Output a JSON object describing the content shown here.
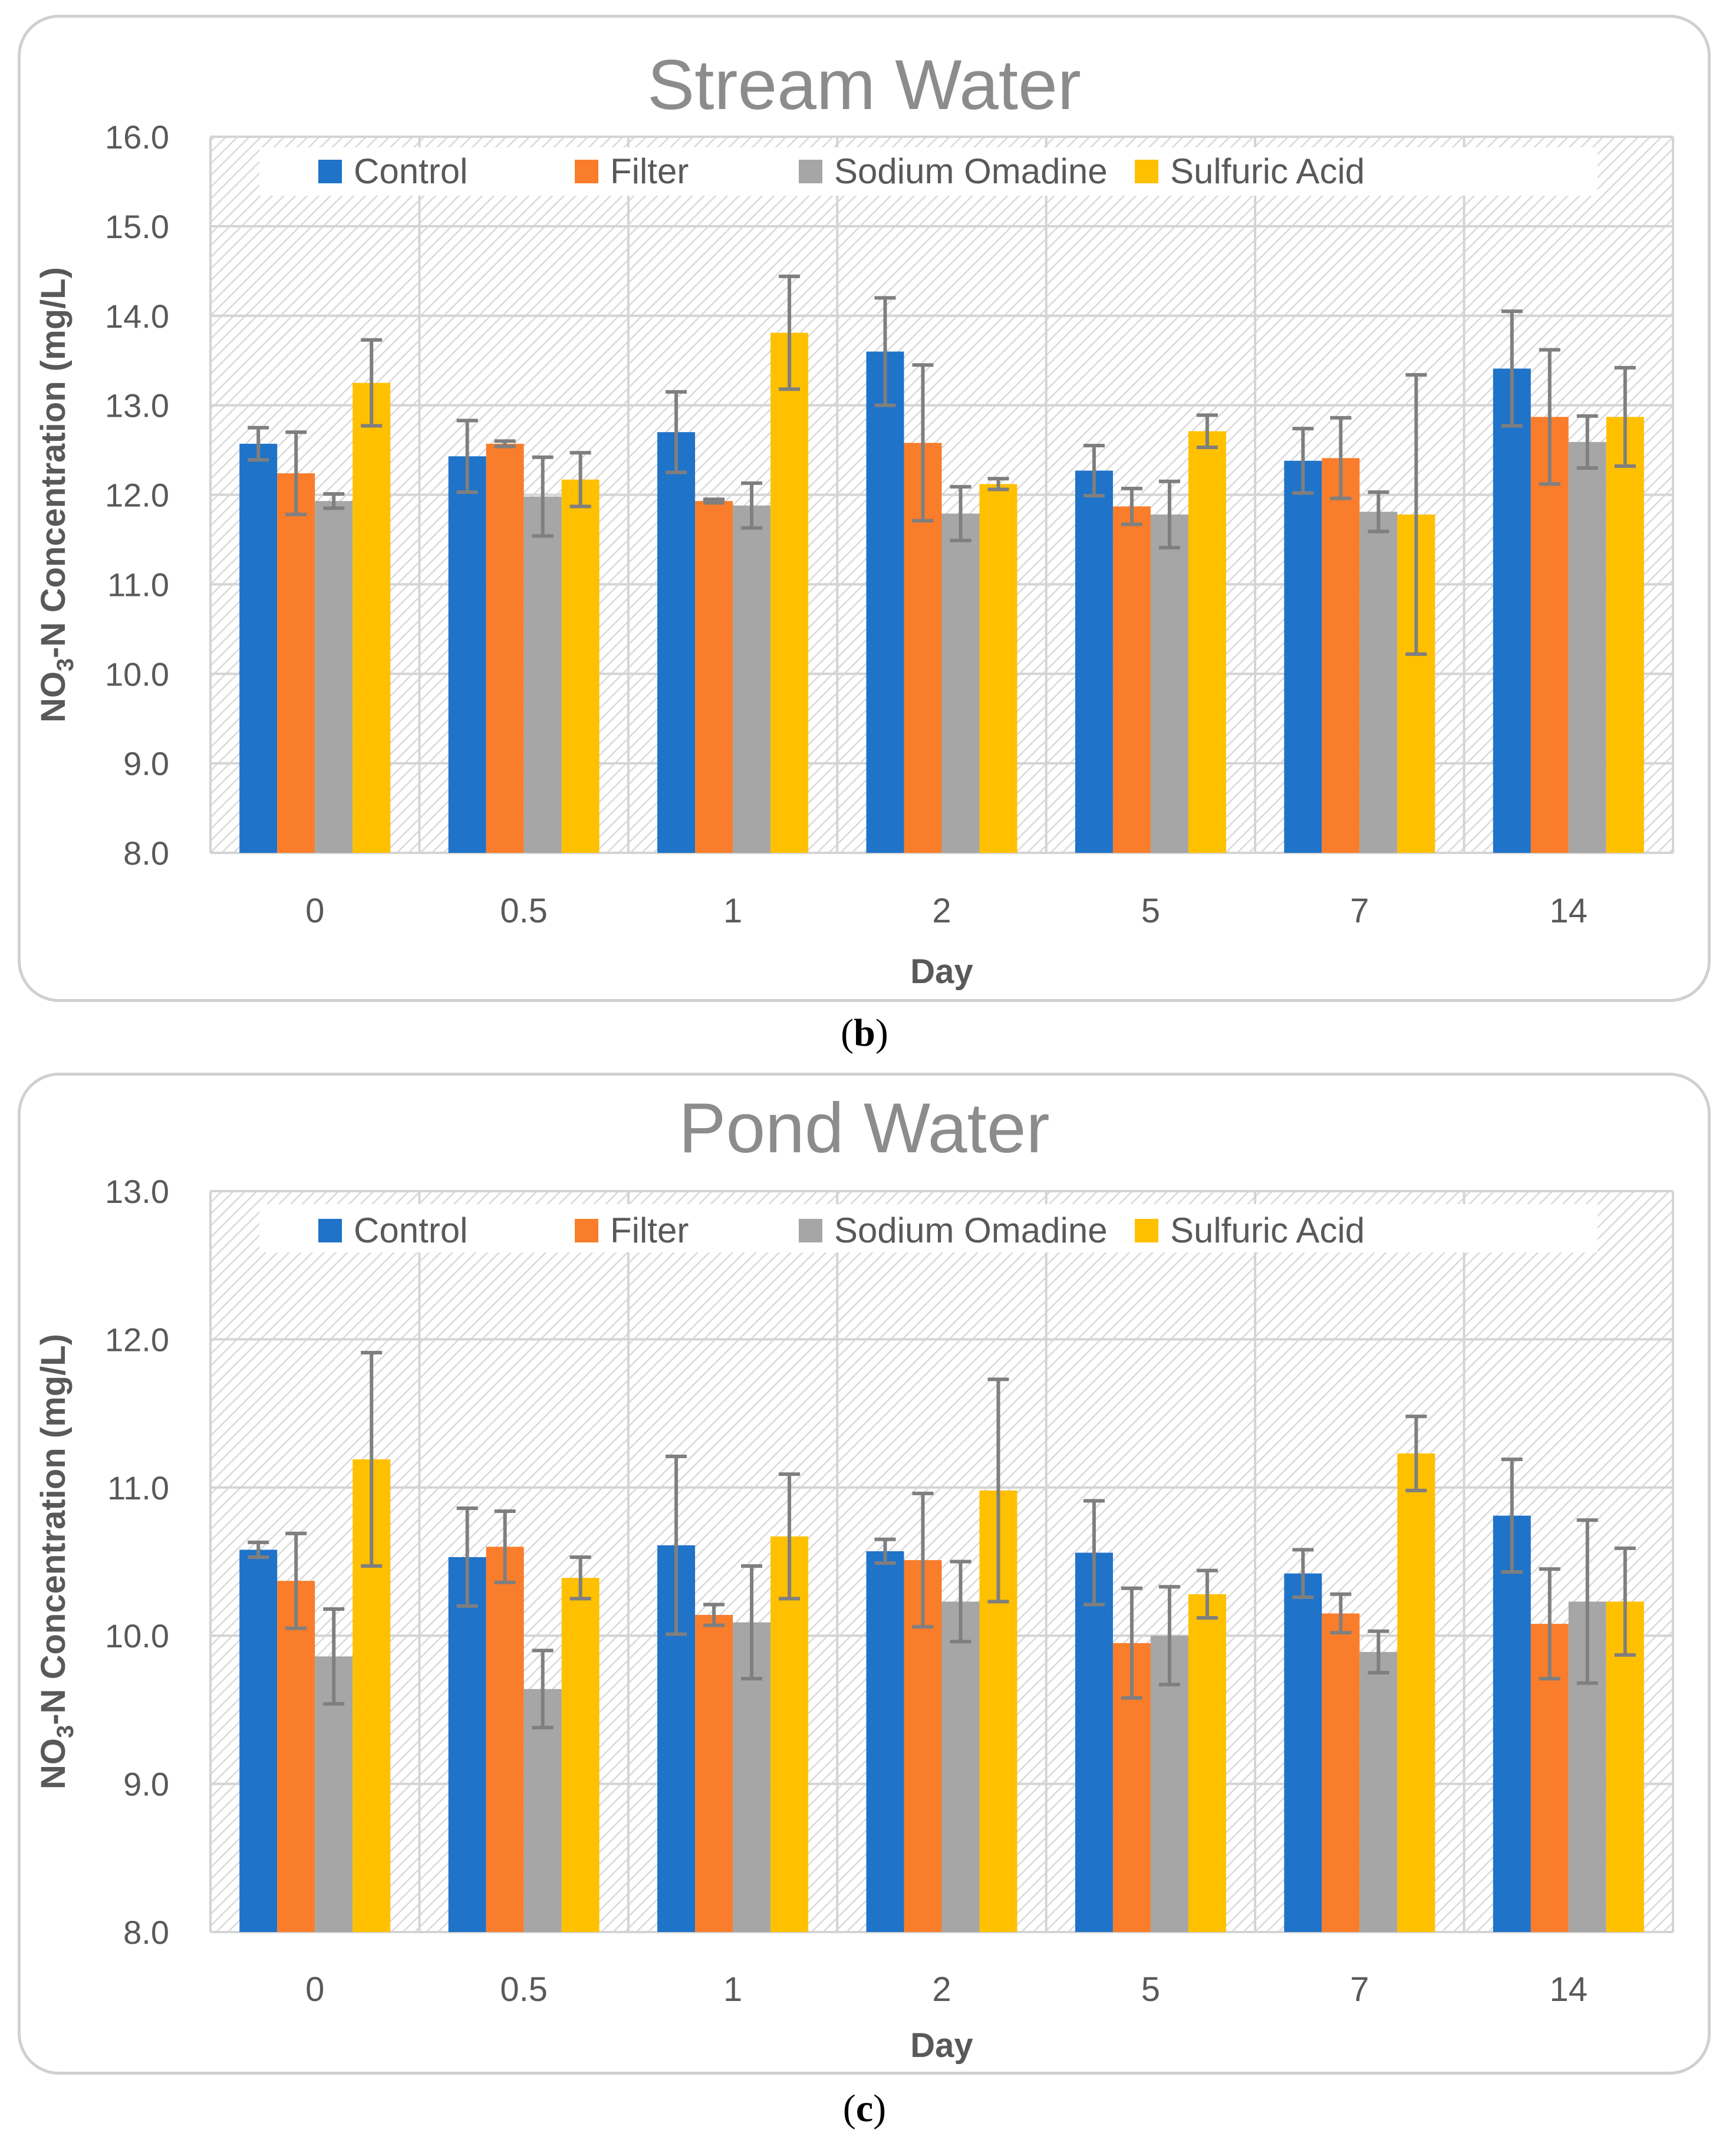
{
  "colors": {
    "Control": "#1f73c8",
    "Filter": "#f97d2b",
    "Sodium Omadine": "#a6a6a6",
    "Sulfuric Acid": "#ffc000",
    "error_bar": "#7f7f7f",
    "grid": "#d4d4d4",
    "title": "#8c8c8c"
  },
  "panels": [
    {
      "label_open": "(",
      "label_letter": "b",
      "label_close": ")"
    },
    {
      "label_open": "(",
      "label_letter": "c",
      "label_close": ")"
    }
  ],
  "chart_data": [
    {
      "type": "bar",
      "title": "Stream Water",
      "xlabel": "Day",
      "ylabel": "NO3-N Concentration (mg/L)",
      "ylabel_parts": {
        "pre": "NO",
        "sub": "3",
        "post": "-N Concentration (mg/L)"
      },
      "ylim": [
        8.0,
        16.0
      ],
      "yticks": [
        "8.0",
        "9.0",
        "10.0",
        "11.0",
        "12.0",
        "13.0",
        "14.0",
        "15.0",
        "16.0"
      ],
      "legend": "top",
      "grid": true,
      "categories": [
        "0",
        "0.5",
        "1",
        "2",
        "5",
        "7",
        "14"
      ],
      "series": [
        {
          "name": "Control",
          "values": [
            12.57,
            12.43,
            12.7,
            13.6,
            12.27,
            12.38,
            13.41
          ],
          "errors": [
            0.18,
            0.4,
            0.45,
            0.6,
            0.28,
            0.36,
            0.64
          ]
        },
        {
          "name": "Filter",
          "values": [
            12.24,
            12.57,
            11.93,
            12.58,
            11.87,
            12.41,
            12.87
          ],
          "errors": [
            0.46,
            0.03,
            0.02,
            0.87,
            0.2,
            0.45,
            0.75
          ]
        },
        {
          "name": "Sodium Omadine",
          "values": [
            11.93,
            11.98,
            11.88,
            11.79,
            11.78,
            11.81,
            12.59
          ],
          "errors": [
            0.08,
            0.44,
            0.25,
            0.3,
            0.37,
            0.22,
            0.29
          ]
        },
        {
          "name": "Sulfuric Acid",
          "values": [
            13.25,
            12.17,
            13.81,
            12.12,
            12.71,
            11.78,
            12.87
          ],
          "errors": [
            0.48,
            0.3,
            0.63,
            0.06,
            0.18,
            1.56,
            0.55
          ]
        }
      ]
    },
    {
      "type": "bar",
      "title": "Pond Water",
      "xlabel": "Day",
      "ylabel": "NO3-N Concentration (mg/L)",
      "ylabel_parts": {
        "pre": "NO",
        "sub": "3",
        "post": "-N Concentration (mg/L)"
      },
      "ylim": [
        8.0,
        13.0
      ],
      "yticks": [
        "8.0",
        "9.0",
        "10.0",
        "11.0",
        "12.0",
        "13.0"
      ],
      "legend": "top",
      "grid": true,
      "categories": [
        "0",
        "0.5",
        "1",
        "2",
        "5",
        "7",
        "14"
      ],
      "series": [
        {
          "name": "Control",
          "values": [
            10.58,
            10.53,
            10.61,
            10.57,
            10.56,
            10.42,
            10.81
          ],
          "errors": [
            0.05,
            0.33,
            0.6,
            0.08,
            0.35,
            0.16,
            0.38
          ]
        },
        {
          "name": "Filter",
          "values": [
            10.37,
            10.6,
            10.14,
            10.51,
            9.95,
            10.15,
            10.08
          ],
          "errors": [
            0.32,
            0.24,
            0.07,
            0.45,
            0.37,
            0.13,
            0.37
          ]
        },
        {
          "name": "Sodium Omadine",
          "values": [
            9.86,
            9.64,
            10.09,
            10.23,
            10.0,
            9.89,
            10.23
          ],
          "errors": [
            0.32,
            0.26,
            0.38,
            0.27,
            0.33,
            0.14,
            0.55
          ]
        },
        {
          "name": "Sulfuric Acid",
          "values": [
            11.19,
            10.39,
            10.67,
            10.98,
            10.28,
            11.23,
            10.23
          ],
          "errors": [
            0.72,
            0.14,
            0.42,
            0.75,
            0.16,
            0.25,
            0.36
          ]
        }
      ]
    }
  ]
}
